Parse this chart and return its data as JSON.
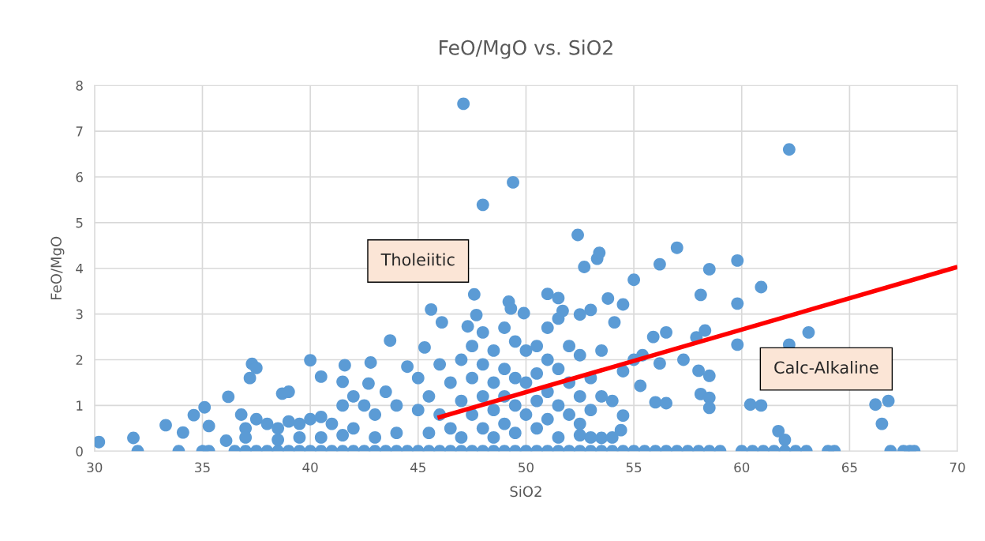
{
  "chart_data": {
    "type": "scatter",
    "title": "FeO/MgO vs. SiO2",
    "xlabel": "SiO2",
    "ylabel": "FeO/MgO",
    "xlim": [
      30,
      70
    ],
    "xticks": [
      30,
      35,
      40,
      45,
      50,
      55,
      60,
      65,
      70
    ],
    "ylim": [
      0,
      8
    ],
    "yticks": [
      0,
      1,
      2,
      3,
      4,
      5,
      6,
      7,
      8
    ],
    "grid": true,
    "legend": false,
    "annotations": [
      "Tholeiitic",
      "Calc-Alkaline"
    ],
    "series": [
      {
        "marker": "circle",
        "color": "#5b9bd5",
        "x": [
          30.2,
          31.8,
          32,
          33.3,
          34.1,
          33.9,
          34.6,
          35.1,
          35.0,
          35.3,
          35.3,
          36.1,
          36.2,
          37.2,
          37.3,
          37.5,
          38.7,
          39,
          40,
          40.5,
          41.5,
          41.6,
          42.7,
          42.8,
          43.7,
          45.3,
          45.6,
          46.1,
          47.1,
          47.3,
          47.6,
          47.7,
          48.0,
          49.2,
          49.3,
          49.4,
          49.9,
          51.0,
          51.5,
          51.7,
          52.4,
          52.7,
          53.3,
          53.4,
          53.0,
          52.5,
          53.8,
          54.1,
          54.5,
          55,
          56.2,
          57,
          58.5,
          59.8,
          59.8,
          60.9,
          58.1,
          57.9,
          58.3,
          56.5,
          55.9,
          55.0,
          55.4,
          57.3,
          58.0,
          58.5,
          56.2,
          55.3,
          56.0,
          56.5,
          58.1,
          58.5,
          58.5,
          59.8,
          62.2,
          63.1,
          60.4,
          60.9,
          61.7,
          62.0,
          66.2,
          66.5,
          66.8,
          54.5,
          54.4,
          53.5,
          62.2,
          36.5,
          37,
          37.5,
          38,
          38.5,
          39,
          39.5,
          40,
          40.5,
          41,
          41.5,
          42,
          42.5,
          43,
          43.5,
          44,
          44.5,
          45,
          45.5,
          46,
          46.5,
          47,
          47.5,
          48,
          48.5,
          49,
          49.5,
          50,
          50.5,
          51,
          51.5,
          52,
          52.5,
          53,
          53.5,
          54,
          54.5,
          55,
          55.5,
          56,
          56.5,
          57,
          57.5,
          58,
          58.5,
          59,
          60,
          60.5,
          61,
          61.5,
          62,
          62.5,
          63,
          64,
          64.3,
          66.9,
          67.5,
          67.8,
          68.0,
          36.8,
          37,
          37.5,
          38,
          38.5,
          39,
          39.5,
          40,
          40.5,
          41,
          41.5,
          42,
          42,
          42.5,
          43,
          43.5,
          44,
          44.5,
          45,
          45,
          37,
          38.5,
          39.5,
          40.5,
          41.5,
          43,
          44,
          45.5,
          45.5,
          46,
          46,
          46.5,
          46.5,
          47,
          47,
          47,
          47.5,
          47.5,
          47.5,
          48,
          48,
          48,
          48,
          48.5,
          48.5,
          48.5,
          48.5,
          49,
          49,
          49,
          49,
          49.5,
          49.5,
          49.5,
          49.5,
          50,
          50,
          50,
          50.5,
          50.5,
          50.5,
          50.5,
          51,
          51,
          51,
          51,
          51.5,
          51.5,
          51.5,
          51.5,
          52,
          52,
          52,
          52.5,
          52.5,
          52.5,
          53,
          53,
          53.5,
          53.5,
          54,
          54.5,
          52.5,
          53,
          54
        ],
        "values": [
          0.2,
          0.29,
          0,
          0.57,
          0.41,
          0,
          0.79,
          0.96,
          0,
          0,
          0.55,
          0.23,
          1.19,
          1.6,
          1.91,
          1.82,
          1.26,
          1.3,
          1.99,
          1.63,
          1.52,
          1.88,
          1.48,
          1.94,
          2.42,
          2.27,
          3.1,
          2.82,
          7.6,
          2.73,
          3.43,
          2.98,
          5.39,
          3.27,
          3.12,
          5.88,
          3.02,
          3.44,
          3.35,
          3.07,
          4.73,
          4.03,
          4.21,
          4.34,
          3.09,
          2.99,
          3.34,
          2.82,
          3.21,
          3.75,
          4.09,
          4.45,
          3.98,
          4.17,
          3.23,
          3.59,
          3.42,
          2.49,
          2.64,
          2.6,
          2.5,
          2.0,
          2.1,
          2.0,
          1.76,
          1.65,
          1.92,
          1.43,
          1.07,
          1.05,
          1.25,
          1.17,
          0.95,
          2.33,
          2.33,
          2.6,
          1.02,
          1.0,
          0.44,
          0.25,
          1.02,
          0.6,
          1.1,
          0.78,
          0.46,
          0.29,
          6.6,
          0,
          0,
          0,
          0,
          0,
          0,
          0,
          0,
          0,
          0,
          0,
          0,
          0,
          0,
          0,
          0,
          0,
          0,
          0,
          0,
          0,
          0,
          0,
          0,
          0,
          0,
          0,
          0,
          0,
          0,
          0,
          0,
          0,
          0,
          0,
          0,
          0,
          0,
          0,
          0,
          0,
          0,
          0,
          0,
          0,
          0,
          0,
          0,
          0,
          0,
          0,
          0,
          0,
          0,
          0,
          0,
          0,
          0,
          0,
          0.8,
          0.5,
          0.7,
          0.6,
          0.5,
          0.65,
          0.6,
          0.7,
          0.75,
          0.6,
          1.0,
          1.2,
          0.5,
          1.0,
          0.8,
          1.3,
          1.0,
          1.85,
          1.6,
          0.9,
          0.3,
          0.25,
          0.3,
          0.3,
          0.35,
          0.3,
          0.4,
          0.4,
          1.2,
          1.9,
          0.8,
          1.5,
          0.5,
          2.0,
          1.1,
          0.3,
          2.3,
          1.6,
          0.8,
          2.6,
          1.9,
          1.2,
          0.5,
          2.2,
          1.5,
          0.9,
          0.3,
          2.7,
          1.8,
          1.2,
          0.6,
          2.4,
          1.6,
          1.0,
          0.4,
          2.2,
          1.5,
          0.8,
          2.3,
          1.7,
          1.1,
          0.5,
          2.7,
          2.0,
          1.3,
          0.7,
          2.9,
          1.8,
          1.0,
          0.3,
          2.3,
          1.5,
          0.8,
          2.1,
          1.2,
          0.6,
          1.6,
          0.9,
          2.2,
          1.2,
          1.1,
          1.75,
          0.35,
          0.3,
          0.3
        ]
      },
      {
        "type": "line",
        "color": "#ff0000",
        "x": [
          45.9,
          70
        ],
        "values": [
          0.73,
          4.03
        ]
      }
    ]
  }
}
